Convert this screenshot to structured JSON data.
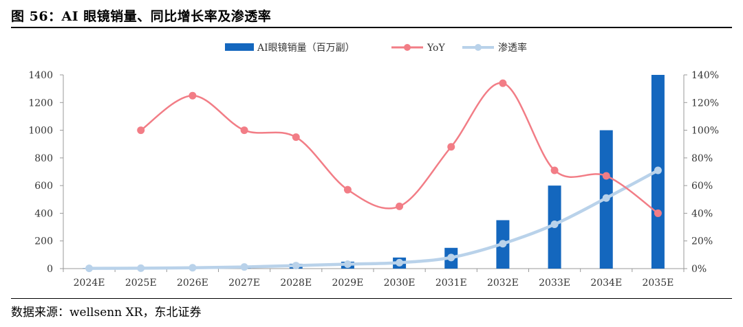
{
  "figure": {
    "title": "图 56：AI 眼镜销量、同比增长率及渗透率",
    "source": "数据来源：wellsenn XR，东北证券"
  },
  "colors": {
    "bar": "#1467BE",
    "yoy": "#F27D86",
    "penetration": "#B9D2EA",
    "axis": "#999999"
  },
  "chart_data": {
    "type": "bar",
    "categories": [
      "2024E",
      "2025E",
      "2026E",
      "2027E",
      "2028E",
      "2029E",
      "2030E",
      "2031E",
      "2032E",
      "2033E",
      "2034E",
      "2035E"
    ],
    "series": [
      {
        "name": "AI眼镜销量（百万副）",
        "type": "bar",
        "axis": "left",
        "values": [
          2,
          5,
          10,
          20,
          35,
          50,
          80,
          150,
          350,
          600,
          1000,
          1400
        ]
      },
      {
        "name": "YoY",
        "type": "line",
        "axis": "right",
        "smooth": true,
        "values": [
          null,
          1.0,
          1.25,
          1.0,
          0.95,
          0.57,
          0.45,
          0.88,
          1.34,
          0.71,
          0.67,
          0.4
        ]
      },
      {
        "name": "渗透率",
        "type": "line",
        "axis": "right",
        "smooth": true,
        "values": [
          0.002,
          0.003,
          0.006,
          0.012,
          0.022,
          0.032,
          0.043,
          0.08,
          0.18,
          0.32,
          0.51,
          0.71
        ]
      }
    ],
    "yleft": {
      "ylim": [
        0,
        1400
      ],
      "ticks": [
        "0",
        "200",
        "400",
        "600",
        "800",
        "1000",
        "1200",
        "1400"
      ]
    },
    "yright": {
      "ylim": [
        0,
        1.4
      ],
      "ticks": [
        "0%",
        "20%",
        "40%",
        "60%",
        "80%",
        "100%",
        "120%",
        "140%"
      ]
    },
    "legend": "top-center",
    "grid": false
  }
}
